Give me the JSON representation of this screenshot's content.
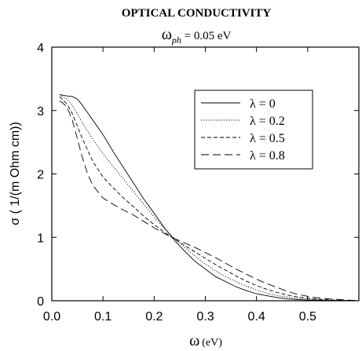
{
  "chart_data": {
    "type": "line",
    "title": "OPTICAL CONDUCTIVITY",
    "subtitle_symbol": "ω",
    "subtitle_subscript": "ph",
    "subtitle_value": " = 0.05 eV",
    "xlabel_symbol": "ω",
    "xlabel_unit": "(eV)",
    "ylabel": "σ ( 1/(m Ohm cm))",
    "xlim": [
      0,
      0.6
    ],
    "ylim": [
      0,
      4
    ],
    "xticks": [
      "0.0",
      "0.1",
      "0.2",
      "0.3",
      "0.4",
      "0.5"
    ],
    "xtick_values": [
      0,
      0.1,
      0.2,
      0.3,
      0.4,
      0.5
    ],
    "yticks": [
      "0",
      "1",
      "2",
      "3",
      "4"
    ],
    "ytick_values": [
      0,
      1,
      2,
      3,
      4
    ],
    "grid": false,
    "legend_position": "top-right",
    "series": [
      {
        "name": "λ = 0",
        "dash": "solid",
        "x": [
          0.015,
          0.03,
          0.04,
          0.05,
          0.06,
          0.08,
          0.1,
          0.12,
          0.14,
          0.16,
          0.18,
          0.2,
          0.22,
          0.24,
          0.26,
          0.28,
          0.3,
          0.32,
          0.34,
          0.36,
          0.38,
          0.4,
          0.42,
          0.44,
          0.46,
          0.48,
          0.5,
          0.52,
          0.54,
          0.56,
          0.58,
          0.6
        ],
        "y": [
          3.25,
          3.23,
          3.22,
          3.18,
          3.08,
          2.85,
          2.62,
          2.35,
          2.1,
          1.85,
          1.6,
          1.38,
          1.15,
          0.95,
          0.78,
          0.62,
          0.5,
          0.38,
          0.3,
          0.22,
          0.16,
          0.11,
          0.08,
          0.05,
          0.03,
          0.02,
          0.01,
          0.01,
          0.005,
          0.003,
          0.002,
          0.0
        ]
      },
      {
        "name": "λ = 0.2",
        "dash": "dotted",
        "x": [
          0.015,
          0.03,
          0.04,
          0.05,
          0.06,
          0.08,
          0.1,
          0.12,
          0.14,
          0.16,
          0.18,
          0.2,
          0.22,
          0.24,
          0.26,
          0.28,
          0.3,
          0.32,
          0.34,
          0.36,
          0.38,
          0.4,
          0.42,
          0.44,
          0.46,
          0.48,
          0.5,
          0.52,
          0.54,
          0.56,
          0.58,
          0.6
        ],
        "y": [
          3.25,
          3.18,
          3.08,
          2.95,
          2.8,
          2.55,
          2.32,
          2.12,
          1.92,
          1.72,
          1.52,
          1.32,
          1.14,
          0.98,
          0.84,
          0.7,
          0.58,
          0.47,
          0.38,
          0.3,
          0.23,
          0.17,
          0.12,
          0.08,
          0.06,
          0.04,
          0.025,
          0.015,
          0.008,
          0.005,
          0.003,
          0.0
        ]
      },
      {
        "name": "λ = 0.5",
        "dash": "dashed",
        "x": [
          0.015,
          0.03,
          0.04,
          0.05,
          0.06,
          0.08,
          0.1,
          0.12,
          0.14,
          0.16,
          0.18,
          0.2,
          0.22,
          0.24,
          0.26,
          0.28,
          0.3,
          0.32,
          0.34,
          0.36,
          0.38,
          0.4,
          0.42,
          0.44,
          0.46,
          0.48,
          0.5,
          0.52,
          0.54,
          0.56,
          0.58,
          0.6
        ],
        "y": [
          3.22,
          3.1,
          2.95,
          2.75,
          2.55,
          2.2,
          1.95,
          1.78,
          1.62,
          1.48,
          1.33,
          1.2,
          1.08,
          0.97,
          0.87,
          0.77,
          0.67,
          0.57,
          0.48,
          0.39,
          0.31,
          0.24,
          0.18,
          0.13,
          0.09,
          0.06,
          0.04,
          0.025,
          0.015,
          0.008,
          0.004,
          0.0
        ]
      },
      {
        "name": "λ = 0.8",
        "dash": "longdash",
        "x": [
          0.015,
          0.02,
          0.03,
          0.04,
          0.05,
          0.06,
          0.07,
          0.08,
          0.1,
          0.12,
          0.14,
          0.16,
          0.18,
          0.2,
          0.22,
          0.24,
          0.26,
          0.28,
          0.3,
          0.32,
          0.34,
          0.36,
          0.38,
          0.4,
          0.42,
          0.44,
          0.46,
          0.48,
          0.5,
          0.52,
          0.54,
          0.56,
          0.58,
          0.6
        ],
        "y": [
          3.15,
          3.13,
          3.05,
          2.85,
          2.55,
          2.25,
          2.0,
          1.82,
          1.62,
          1.52,
          1.43,
          1.35,
          1.25,
          1.15,
          1.06,
          0.98,
          0.91,
          0.84,
          0.76,
          0.68,
          0.59,
          0.5,
          0.42,
          0.34,
          0.27,
          0.21,
          0.15,
          0.1,
          0.07,
          0.045,
          0.03,
          0.02,
          0.01,
          0.0
        ]
      }
    ]
  }
}
